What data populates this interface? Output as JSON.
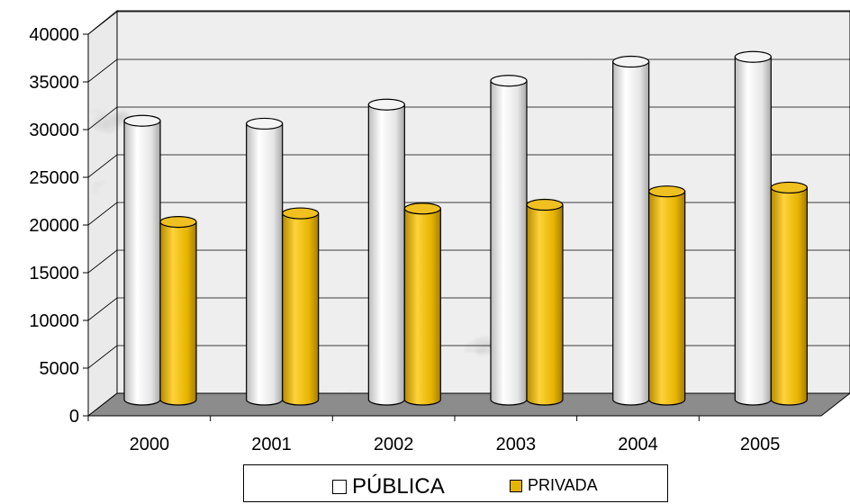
{
  "chart_data": {
    "type": "bar",
    "categories": [
      "2000",
      "2001",
      "2002",
      "2003",
      "2004",
      "2005"
    ],
    "series": [
      {
        "name": "PÚBLICA",
        "values": [
          29600,
          29300,
          31300,
          33800,
          35800,
          36300
        ]
      },
      {
        "name": "PRIVADA",
        "values": [
          19000,
          19900,
          20400,
          20800,
          22200,
          22600
        ]
      }
    ],
    "title": "",
    "xlabel": "",
    "ylabel": "",
    "ylim": [
      0,
      40000
    ],
    "yticks": [
      "0",
      "5000",
      "10000",
      "15000",
      "20000",
      "25000",
      "30000",
      "35000",
      "40000"
    ],
    "style": "3d-cylinder",
    "background": "marble",
    "grid": true,
    "legend_position": "bottom"
  },
  "colors": {
    "public_bar": "#ececec",
    "private_bar": "#e6b400",
    "floor": "#8c8c8c"
  },
  "legend": {
    "public_label": "PÚBLICA",
    "private_label": "PRIVADA"
  }
}
